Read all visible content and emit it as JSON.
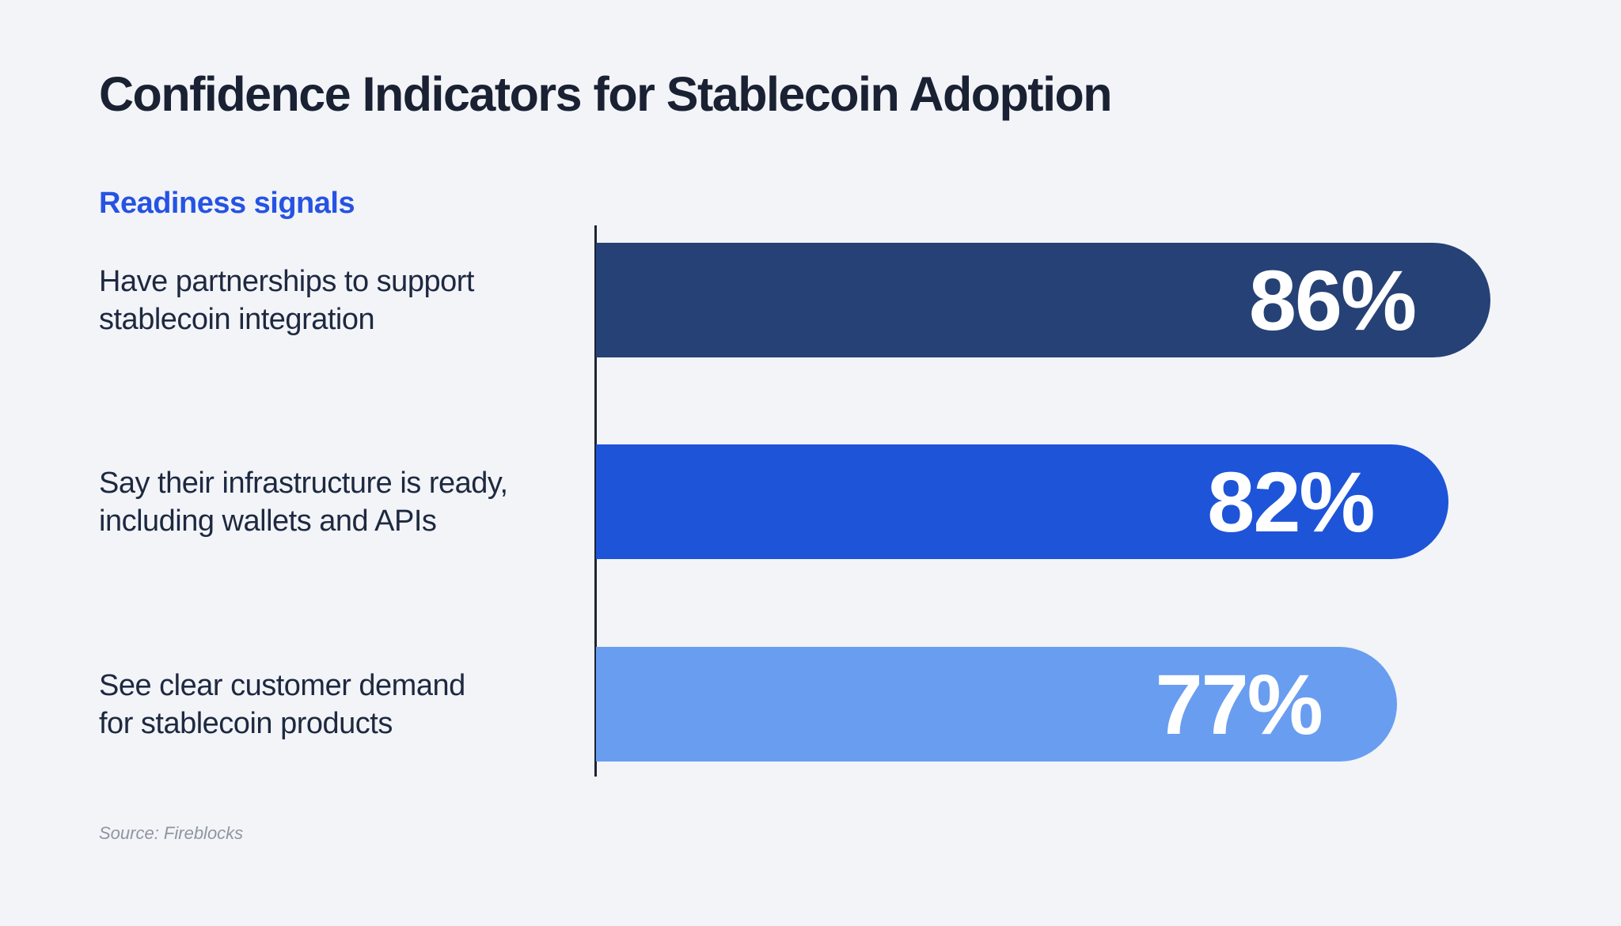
{
  "header": {
    "title": "Confidence Indicators for Stablecoin Adoption",
    "subtitle": "Readiness signals"
  },
  "chart_data": {
    "type": "bar",
    "orientation": "horizontal",
    "title": "Confidence Indicators for Stablecoin Adoption",
    "group_label": "Readiness signals",
    "categories": [
      "Have partnerships to support stablecoin integration",
      "Say their infrastructure is ready, including wallets and APIs",
      "See clear customer demand for stablecoin products"
    ],
    "values": [
      86,
      82,
      77
    ],
    "unit": "%",
    "xlim": [
      0,
      100
    ],
    "grid": false,
    "legend": "none",
    "value_labels_inside_bars": true,
    "rows": [
      {
        "label": "Have partnerships to support\nstablecoin integration",
        "value": 86,
        "value_label": "86%",
        "color": "#264175"
      },
      {
        "label": "Say their infrastructure is ready,\nincluding wallets and APIs",
        "value": 82,
        "value_label": "82%",
        "color": "#1e54d8"
      },
      {
        "label": "See clear customer demand\nfor stablecoin products",
        "value": 77,
        "value_label": "77%",
        "color": "#699df0"
      }
    ]
  },
  "colors": {
    "background": "#f2f4f8",
    "title_ink": "#1a2133",
    "label_ink": "#1e2940",
    "subtitle_blue": "#2653e3",
    "axis_line": "#1c2434",
    "bar_navy": "#264175",
    "bar_blue": "#1e54d8",
    "bar_light_blue": "#699df0",
    "value_text": "#ffffff",
    "source_gray": "#8f95a1"
  },
  "footer": {
    "source": "Source: Fireblocks"
  }
}
